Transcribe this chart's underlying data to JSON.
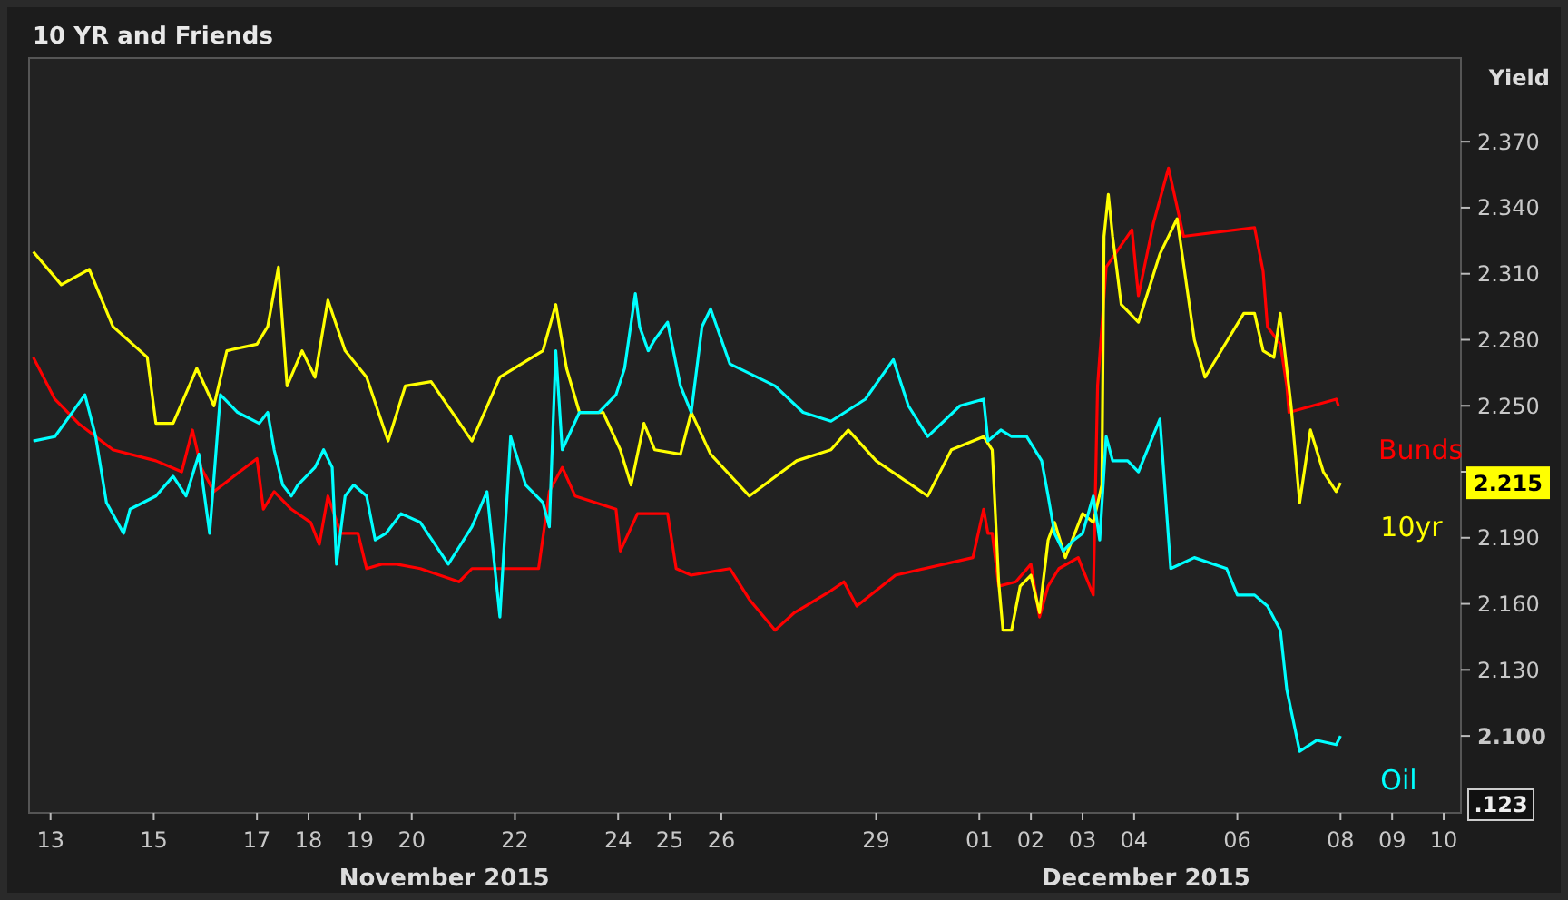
{
  "chart_data": {
    "type": "line",
    "title": "10 YR and Friends",
    "ylabel": "Yield",
    "legend": false,
    "grid": false,
    "line_style": "solid",
    "marker": "none",
    "xlim": [
      "2015-11-12T14:00",
      "2015-12-10T08:00"
    ],
    "ylim": [
      2.065,
      2.408
    ],
    "xticks": [
      {
        "value": "2015-11-13",
        "label": "13"
      },
      {
        "value": "2015-11-15",
        "label": "15"
      },
      {
        "value": "2015-11-17",
        "label": "17"
      },
      {
        "value": "2015-11-18",
        "label": "18"
      },
      {
        "value": "2015-11-19",
        "label": "19"
      },
      {
        "value": "2015-11-20",
        "label": "20"
      },
      {
        "value": "2015-11-22",
        "label": "22"
      },
      {
        "value": "2015-11-24",
        "label": "24"
      },
      {
        "value": "2015-11-25",
        "label": "25"
      },
      {
        "value": "2015-11-26",
        "label": "26"
      },
      {
        "value": "2015-11-29",
        "label": "29"
      },
      {
        "value": "2015-12-01",
        "label": "01"
      },
      {
        "value": "2015-12-02",
        "label": "02"
      },
      {
        "value": "2015-12-03",
        "label": "03"
      },
      {
        "value": "2015-12-04",
        "label": "04"
      },
      {
        "value": "2015-12-06",
        "label": "06"
      },
      {
        "value": "2015-12-08",
        "label": "08"
      },
      {
        "value": "2015-12-09",
        "label": "09"
      },
      {
        "value": "2015-12-10",
        "label": "10"
      }
    ],
    "yticks": [
      {
        "value": 2.1,
        "label": "2.100"
      },
      {
        "value": 2.13,
        "label": "2.130"
      },
      {
        "value": 2.16,
        "label": "2.160"
      },
      {
        "value": 2.19,
        "label": "2.190"
      },
      {
        "value": 2.22,
        "label": null
      },
      {
        "value": 2.25,
        "label": "2.250"
      },
      {
        "value": 2.28,
        "label": "2.280"
      },
      {
        "value": 2.31,
        "label": "2.310"
      },
      {
        "value": 2.34,
        "label": "2.340"
      },
      {
        "value": 2.37,
        "label": "2.370"
      }
    ],
    "annotations": [
      "November 2015",
      "December 2015",
      "2.215",
      ".123"
    ],
    "series": [
      {
        "name": "Bunds",
        "color": "#ff0000",
        "x": [
          "2015-11-12T16:00",
          "2015-11-13T02:00",
          "2015-11-13T13:00",
          "2015-11-14T05:00",
          "2015-11-15T01:00",
          "2015-11-15T13:00",
          "2015-11-15T18:00",
          "2015-11-15T22:00",
          "2015-11-16T04:00",
          "2015-11-17T00:00",
          "2015-11-17T03:00",
          "2015-11-17T08:00",
          "2015-11-17T16:00",
          "2015-11-18T01:00",
          "2015-11-18T05:00",
          "2015-11-18T09:00",
          "2015-11-18T15:00",
          "2015-11-18T23:00",
          "2015-11-19T03:00",
          "2015-11-19T10:00",
          "2015-11-19T17:00",
          "2015-11-20T04:00",
          "2015-11-20T22:00",
          "2015-11-21T04:00",
          "2015-11-21T17:00",
          "2015-11-22T11:00",
          "2015-11-22T16:00",
          "2015-11-22T22:00",
          "2015-11-23T04:00",
          "2015-11-23T23:00",
          "2015-11-24T01:00",
          "2015-11-24T09:00",
          "2015-11-24T23:00",
          "2015-11-25T03:00",
          "2015-11-25T10:00",
          "2015-11-26T04:00",
          "2015-11-26T13:00",
          "2015-11-27T01:00",
          "2015-11-27T10:00",
          "2015-11-28T03:00",
          "2015-11-28T09:00",
          "2015-11-28T15:00",
          "2015-11-29T09:00",
          "2015-11-30T21:00",
          "2015-12-01T02:00",
          "2015-12-01T04:00",
          "2015-12-01T06:00",
          "2015-12-01T09:00",
          "2015-12-01T17:00",
          "2015-12-02T00:00",
          "2015-12-02T04:00",
          "2015-12-02T08:00",
          "2015-12-02T13:00",
          "2015-12-02T22:00",
          "2015-12-03T00:00",
          "2015-12-03T05:00",
          "2015-12-03T07:00",
          "2015-12-03T09:00",
          "2015-12-03T11:00",
          "2015-12-03T23:00",
          "2015-12-04T02:00",
          "2015-12-04T09:00",
          "2015-12-04T16:00",
          "2015-12-04T23:00",
          "2015-12-06T08:00",
          "2015-12-06T12:00",
          "2015-12-06T14:00",
          "2015-12-06T20:00",
          "2015-12-06T23:00",
          "2015-12-07T00:00",
          "2015-12-07T22:00",
          "2015-12-07T23:00"
        ],
        "values": [
          2.272,
          2.253,
          2.242,
          2.23,
          2.225,
          2.22,
          2.239,
          2.222,
          2.211,
          2.226,
          2.203,
          2.211,
          2.203,
          2.197,
          2.187,
          2.209,
          2.192,
          2.192,
          2.176,
          2.178,
          2.178,
          2.176,
          2.17,
          2.176,
          2.176,
          2.176,
          2.211,
          2.222,
          2.209,
          2.203,
          2.184,
          2.201,
          2.201,
          2.176,
          2.173,
          2.176,
          2.162,
          2.148,
          2.156,
          2.166,
          2.17,
          2.159,
          2.173,
          2.181,
          2.203,
          2.192,
          2.192,
          2.168,
          2.17,
          2.178,
          2.154,
          2.168,
          2.176,
          2.181,
          2.176,
          2.164,
          2.259,
          2.286,
          2.313,
          2.33,
          2.3,
          2.333,
          2.358,
          2.327,
          2.331,
          2.311,
          2.286,
          2.278,
          2.259,
          2.247,
          2.253,
          2.25
        ]
      },
      {
        "name": "10yr",
        "color": "#ffff00",
        "x": [
          "2015-11-12T16:00",
          "2015-11-13T05:00",
          "2015-11-13T18:00",
          "2015-11-14T05:00",
          "2015-11-14T21:00",
          "2015-11-15T01:00",
          "2015-11-15T09:00",
          "2015-11-15T20:00",
          "2015-11-16T04:00",
          "2015-11-16T10:00",
          "2015-11-17T00:00",
          "2015-11-17T05:00",
          "2015-11-17T10:00",
          "2015-11-17T14:00",
          "2015-11-17T21:00",
          "2015-11-18T03:00",
          "2015-11-18T09:00",
          "2015-11-18T17:00",
          "2015-11-19T03:00",
          "2015-11-19T13:00",
          "2015-11-19T21:00",
          "2015-11-20T09:00",
          "2015-11-21T04:00",
          "2015-11-21T17:00",
          "2015-11-22T13:00",
          "2015-11-22T19:00",
          "2015-11-23T00:00",
          "2015-11-23T06:00",
          "2015-11-23T17:00",
          "2015-11-24T01:00",
          "2015-11-24T06:00",
          "2015-11-24T12:00",
          "2015-11-24T17:00",
          "2015-11-25T05:00",
          "2015-11-25T10:00",
          "2015-11-25T19:00",
          "2015-11-26T13:00",
          "2015-11-27T11:00",
          "2015-11-28T03:00",
          "2015-11-28T11:00",
          "2015-11-29T00:00",
          "2015-11-30T00:00",
          "2015-11-30T11:00",
          "2015-12-01T02:00",
          "2015-12-01T06:00",
          "2015-12-01T09:00",
          "2015-12-01T11:00",
          "2015-12-01T15:00",
          "2015-12-01T19:00",
          "2015-12-02T00:00",
          "2015-12-02T04:00",
          "2015-12-02T08:00",
          "2015-12-02T11:00",
          "2015-12-02T16:00",
          "2015-12-03T00:00",
          "2015-12-03T05:00",
          "2015-12-03T09:00",
          "2015-12-03T10:00",
          "2015-12-03T12:00",
          "2015-12-03T14:00",
          "2015-12-03T18:00",
          "2015-12-04T02:00",
          "2015-12-04T12:00",
          "2015-12-04T20:00",
          "2015-12-05T04:00",
          "2015-12-05T09:00",
          "2015-12-06T03:00",
          "2015-12-06T08:00",
          "2015-12-06T12:00",
          "2015-12-06T17:00",
          "2015-12-06T20:00",
          "2015-12-07T01:00",
          "2015-12-07T05:00",
          "2015-12-07T10:00",
          "2015-12-07T16:00",
          "2015-12-07T22:00",
          "2015-12-08T00:00"
        ],
        "values": [
          2.32,
          2.305,
          2.312,
          2.286,
          2.272,
          2.242,
          2.242,
          2.267,
          2.25,
          2.275,
          2.278,
          2.286,
          2.313,
          2.259,
          2.275,
          2.263,
          2.298,
          2.275,
          2.263,
          2.234,
          2.259,
          2.261,
          2.234,
          2.263,
          2.275,
          2.296,
          2.267,
          2.247,
          2.247,
          2.23,
          2.214,
          2.242,
          2.23,
          2.228,
          2.247,
          2.228,
          2.209,
          2.225,
          2.23,
          2.239,
          2.225,
          2.209,
          2.23,
          2.236,
          2.23,
          2.17,
          2.148,
          2.148,
          2.168,
          2.173,
          2.156,
          2.189,
          2.197,
          2.181,
          2.201,
          2.197,
          2.214,
          2.327,
          2.346,
          2.327,
          2.296,
          2.288,
          2.319,
          2.335,
          2.28,
          2.263,
          2.292,
          2.292,
          2.275,
          2.272,
          2.292,
          2.25,
          2.206,
          2.239,
          2.22,
          2.211,
          2.215
        ]
      },
      {
        "name": "Oil",
        "color": "#00ffff",
        "x": [
          "2015-11-12T16:00",
          "2015-11-13T02:00",
          "2015-11-13T16:00",
          "2015-11-13T21:00",
          "2015-11-14T02:00",
          "2015-11-14T10:00",
          "2015-11-14T13:00",
          "2015-11-15T01:00",
          "2015-11-15T09:00",
          "2015-11-15T15:00",
          "2015-11-15T21:00",
          "2015-11-16T02:00",
          "2015-11-16T07:00",
          "2015-11-16T15:00",
          "2015-11-17T01:00",
          "2015-11-17T05:00",
          "2015-11-17T08:00",
          "2015-11-17T12:00",
          "2015-11-17T16:00",
          "2015-11-17T19:00",
          "2015-11-18T03:00",
          "2015-11-18T07:00",
          "2015-11-18T11:00",
          "2015-11-18T13:00",
          "2015-11-18T17:00",
          "2015-11-18T21:00",
          "2015-11-19T03:00",
          "2015-11-19T07:00",
          "2015-11-19T12:00",
          "2015-11-19T19:00",
          "2015-11-20T04:00",
          "2015-11-20T17:00",
          "2015-11-21T04:00",
          "2015-11-21T11:00",
          "2015-11-21T17:00",
          "2015-11-21T22:00",
          "2015-11-22T05:00",
          "2015-11-22T13:00",
          "2015-11-22T16:00",
          "2015-11-22T19:00",
          "2015-11-22T22:00",
          "2015-11-23T06:00",
          "2015-11-23T15:00",
          "2015-11-23T23:00",
          "2015-11-24T03:00",
          "2015-11-24T08:00",
          "2015-11-24T10:00",
          "2015-11-24T14:00",
          "2015-11-24T17:00",
          "2015-11-24T23:00",
          "2015-11-25T05:00",
          "2015-11-25T10:00",
          "2015-11-25T15:00",
          "2015-11-25T19:00",
          "2015-11-26T04:00",
          "2015-11-27T01:00",
          "2015-11-27T14:00",
          "2015-11-28T03:00",
          "2015-11-28T19:00",
          "2015-11-29T08:00",
          "2015-11-29T15:00",
          "2015-11-30T00:00",
          "2015-11-30T15:00",
          "2015-12-01T02:00",
          "2015-12-01T04:00",
          "2015-12-01T10:00",
          "2015-12-01T15:00",
          "2015-12-01T22:00",
          "2015-12-02T05:00",
          "2015-12-02T08:00",
          "2015-12-02T11:00",
          "2015-12-02T15:00",
          "2015-12-02T20:00",
          "2015-12-03T00:00",
          "2015-12-03T05:00",
          "2015-12-03T08:00",
          "2015-12-03T11:00",
          "2015-12-03T14:00",
          "2015-12-03T21:00",
          "2015-12-04T02:00",
          "2015-12-04T12:00",
          "2015-12-04T17:00",
          "2015-12-05T04:00",
          "2015-12-05T19:00",
          "2015-12-06T00:00",
          "2015-12-06T08:00",
          "2015-12-06T14:00",
          "2015-12-06T20:00",
          "2015-12-06T23:00",
          "2015-12-07T05:00",
          "2015-12-07T13:00",
          "2015-12-07T22:00",
          "2015-12-08T00:00"
        ],
        "values": [
          2.234,
          2.236,
          2.255,
          2.236,
          2.206,
          2.192,
          2.203,
          2.209,
          2.218,
          2.209,
          2.228,
          2.192,
          2.255,
          2.247,
          2.242,
          2.247,
          2.23,
          2.214,
          2.209,
          2.214,
          2.222,
          2.23,
          2.222,
          2.178,
          2.209,
          2.214,
          2.209,
          2.189,
          2.192,
          2.201,
          2.197,
          2.178,
          2.195,
          2.211,
          2.154,
          2.236,
          2.214,
          2.206,
          2.195,
          2.275,
          2.23,
          2.247,
          2.247,
          2.255,
          2.267,
          2.301,
          2.286,
          2.275,
          2.28,
          2.288,
          2.259,
          2.247,
          2.286,
          2.294,
          2.269,
          2.259,
          2.247,
          2.243,
          2.253,
          2.271,
          2.25,
          2.236,
          2.25,
          2.253,
          2.234,
          2.239,
          2.236,
          2.236,
          2.225,
          2.209,
          2.192,
          2.184,
          2.189,
          2.192,
          2.209,
          2.189,
          2.236,
          2.225,
          2.225,
          2.22,
          2.244,
          2.176,
          2.181,
          2.176,
          2.164,
          2.164,
          2.159,
          2.148,
          2.121,
          2.093,
          2.098,
          2.096,
          2.1
        ]
      }
    ]
  }
}
